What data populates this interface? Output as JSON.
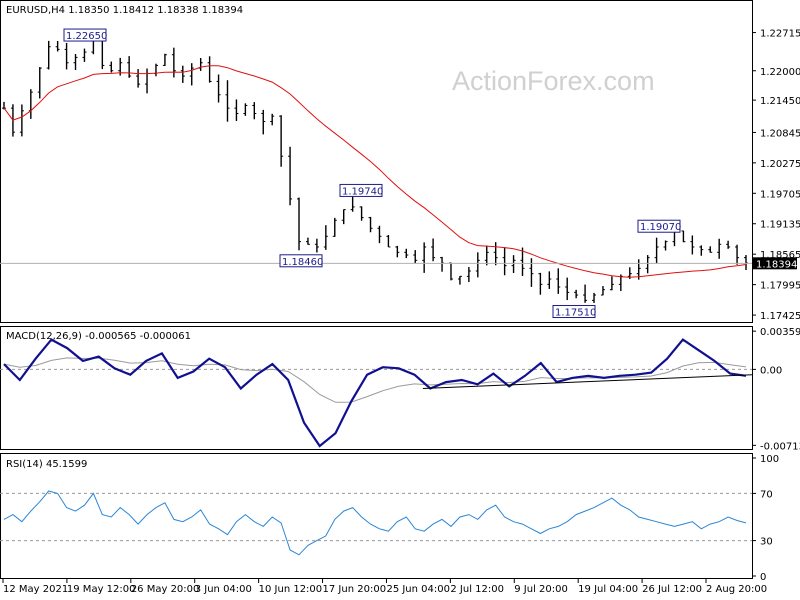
{
  "header": {
    "price": "EURUSD,H4  1.18350 1.18412 1.18338 1.18394",
    "macd": "MACD(12,26,9) -0.000565 -0.000061",
    "rsi": "RSI(14) 45.1599"
  },
  "watermark": "ActionForex.com",
  "colors": {
    "candles": "#000000",
    "ma": "#e01010",
    "macd": "#101090",
    "signal": "#9a9a9a",
    "rsi": "#2a86d8",
    "trendline": "#000000",
    "label_border": "#1c1c8a"
  },
  "chart_data": [
    {
      "type": "candlestick",
      "title": "EURUSD,H4",
      "ohlc_last": {
        "open": 1.1835,
        "high": 1.18412,
        "low": 1.18338,
        "close": 1.18394
      },
      "ylim": [
        1.1737,
        1.2325
      ],
      "y_ticks": [
        "1.22715",
        "1.22000",
        "1.21450",
        "1.20845",
        "1.20275",
        "1.19705",
        "1.19135",
        "1.18565",
        "1.17995",
        "1.17425"
      ],
      "y_tick_values": [
        1.22715,
        1.22,
        1.2145,
        1.20845,
        1.20275,
        1.19705,
        1.19135,
        1.18565,
        1.17995,
        1.17425
      ],
      "current_price_label": "1.18394",
      "current_price": 1.18394,
      "x_ticks": [
        "12 May 2021",
        "19 May 12:00",
        "26 May 20:00",
        "3 Jun 04:00",
        "10 Jun 12:00",
        "17 Jun 20:00",
        "25 Jun 04:00",
        "2 Jul 12:00",
        "9 Jul 20:00",
        "19 Jul 04:00",
        "26 Jul 12:00",
        "2 Aug 20:00"
      ],
      "closes": [
        1.213,
        1.2085,
        1.2125,
        1.216,
        1.2205,
        1.2245,
        1.224,
        1.2215,
        1.2225,
        1.2235,
        1.226,
        1.221,
        1.22,
        1.2215,
        1.219,
        1.2175,
        1.2195,
        1.221,
        1.223,
        1.22,
        1.219,
        1.2205,
        1.2215,
        1.218,
        1.2155,
        1.213,
        1.212,
        1.2135,
        1.212,
        1.2105,
        1.2115,
        1.204,
        1.196,
        1.188,
        1.1875,
        1.187,
        1.189,
        1.192,
        1.194,
        1.1945,
        1.1925,
        1.1905,
        1.189,
        1.187,
        1.186,
        1.1855,
        1.1845,
        1.187,
        1.185,
        1.184,
        1.181,
        1.1815,
        1.1825,
        1.1845,
        1.186,
        1.185,
        1.1835,
        1.1845,
        1.183,
        1.182,
        1.18,
        1.181,
        1.1795,
        1.1785,
        1.178,
        1.177,
        1.178,
        1.179,
        1.18,
        1.1815,
        1.182,
        1.183,
        1.185,
        1.187,
        1.188,
        1.19,
        1.188,
        1.187,
        1.1865,
        1.186,
        1.1875,
        1.187,
        1.185,
        1.184
      ],
      "ma_period": 21,
      "annotations": [
        {
          "text": "1.22650",
          "value": 1.2265
        },
        {
          "text": "1.19740",
          "value": 1.1974
        },
        {
          "text": "1.18460",
          "value": 1.1846
        },
        {
          "text": "1.17510",
          "value": 1.1751
        },
        {
          "text": "1.19070",
          "value": 1.1907
        }
      ]
    },
    {
      "type": "line",
      "title": "MACD(12,26,9)",
      "values_last": {
        "macd": -0.000565,
        "signal": -6.1e-05
      },
      "ylim": [
        -0.0072,
        0.0037
      ],
      "y_ticks": [
        "0.003591",
        "0.00",
        "-0.007137"
      ],
      "y_tick_values": [
        0.003591,
        0.0,
        -0.007137
      ],
      "macd": [
        0.0005,
        -0.001,
        0.001,
        0.0028,
        0.002,
        0.0008,
        0.0012,
        0.0001,
        -0.0005,
        0.0008,
        0.0015,
        -0.0008,
        -0.0002,
        0.001,
        0.0002,
        -0.0018,
        -0.0005,
        0.0005,
        -0.001,
        -0.005,
        -0.0072,
        -0.006,
        -0.003,
        -0.0005,
        0.0002,
        0.0001,
        -0.0005,
        -0.0018,
        -0.0012,
        -0.001,
        -0.0014,
        -0.0004,
        -0.0016,
        -0.0006,
        0.0006,
        -0.0012,
        -0.0008,
        -0.0006,
        -0.0008,
        -0.0006,
        -0.0005,
        -0.0003,
        0.001,
        0.0028,
        0.0018,
        0.0008,
        -0.0004,
        -0.0006
      ],
      "signal_period": 9,
      "trendline": [
        {
          "x": 0.56,
          "y": -0.0018
        },
        {
          "x": 1.0,
          "y": -0.0005
        }
      ]
    },
    {
      "type": "line",
      "title": "RSI(14)",
      "value_last": 45.1599,
      "ylim": [
        0,
        100
      ],
      "y_ticks": [
        "100",
        "70",
        "30",
        "0"
      ],
      "y_tick_values": [
        100,
        70,
        30,
        0
      ],
      "levels": [
        70,
        30
      ],
      "rsi": [
        48,
        52,
        46,
        55,
        63,
        72,
        70,
        58,
        55,
        60,
        70,
        52,
        50,
        58,
        52,
        44,
        52,
        58,
        62,
        48,
        46,
        50,
        56,
        44,
        40,
        35,
        46,
        52,
        46,
        42,
        50,
        45,
        22,
        18,
        26,
        30,
        34,
        48,
        55,
        58,
        50,
        44,
        40,
        38,
        46,
        50,
        40,
        38,
        44,
        48,
        42,
        50,
        52,
        48,
        56,
        60,
        50,
        46,
        44,
        40,
        36,
        40,
        42,
        46,
        52,
        55,
        58,
        62,
        66,
        60,
        56,
        50,
        48,
        46,
        44,
        42,
        44,
        46,
        40,
        44,
        46,
        50,
        47,
        45
      ]
    }
  ]
}
